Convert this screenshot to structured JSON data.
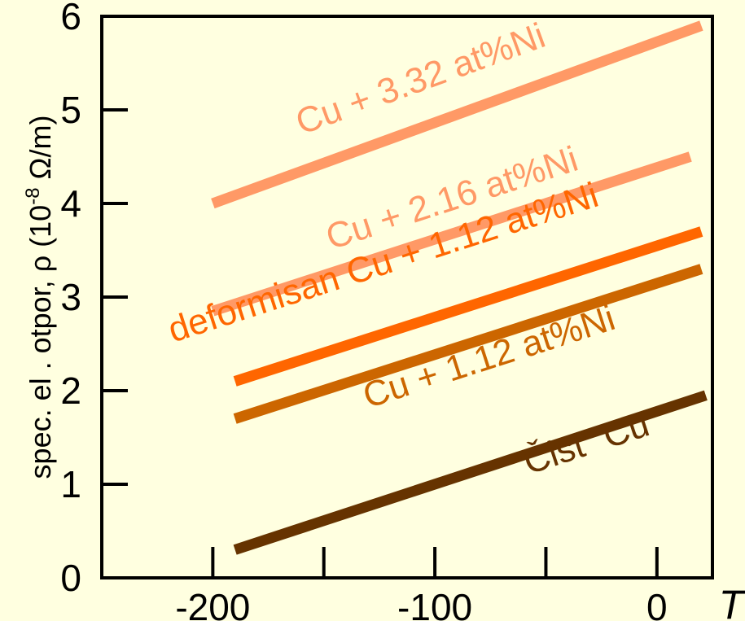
{
  "chart_data": {
    "type": "line",
    "xlabel": "T",
    "ylabel": {
      "text": "spec. el . otpor, ρ (10",
      "superscript": "-8",
      "unit": " Ω/m)"
    },
    "xlim": [
      -250,
      25
    ],
    "ylim": [
      0,
      6
    ],
    "x_ticks": [
      -250,
      -200,
      -150,
      -100,
      -50,
      0
    ],
    "x_tick_labels": [
      {
        "value": -200,
        "label": "-200"
      },
      {
        "value": -100,
        "label": "-100"
      },
      {
        "value": 0,
        "label": "0"
      }
    ],
    "y_ticks": [
      0,
      1,
      2,
      3,
      4,
      5,
      6
    ],
    "y_tick_labels": [
      "0",
      "1",
      "2",
      "3",
      "4",
      "5",
      "6"
    ],
    "grid": false,
    "legend": "none (series labeled inline)",
    "series": [
      {
        "name": "Cu + 3.32 at%Ni",
        "color": "#FF9966",
        "x": [
          -200,
          20
        ],
        "y": [
          4.0,
          5.9
        ]
      },
      {
        "name": "Cu + 2.16 at%Ni",
        "color": "#FF9966",
        "x": [
          -200,
          15
        ],
        "y": [
          2.85,
          4.5
        ]
      },
      {
        "name": "deformisan Cu + 1.12 at%Ni",
        "color": "#FF6600",
        "x": [
          -190,
          20
        ],
        "y": [
          2.1,
          3.7
        ]
      },
      {
        "name": "Cu + 1.12 at%Ni",
        "color": "#CC6600",
        "x": [
          -190,
          20
        ],
        "y": [
          1.7,
          3.3
        ]
      },
      {
        "name": "“Čist” Cu",
        "color": "#663300",
        "x": [
          -190,
          22
        ],
        "y": [
          0.3,
          1.95
        ]
      }
    ]
  },
  "colors": {
    "background": "#FFFFE0",
    "axes": "#000000"
  }
}
